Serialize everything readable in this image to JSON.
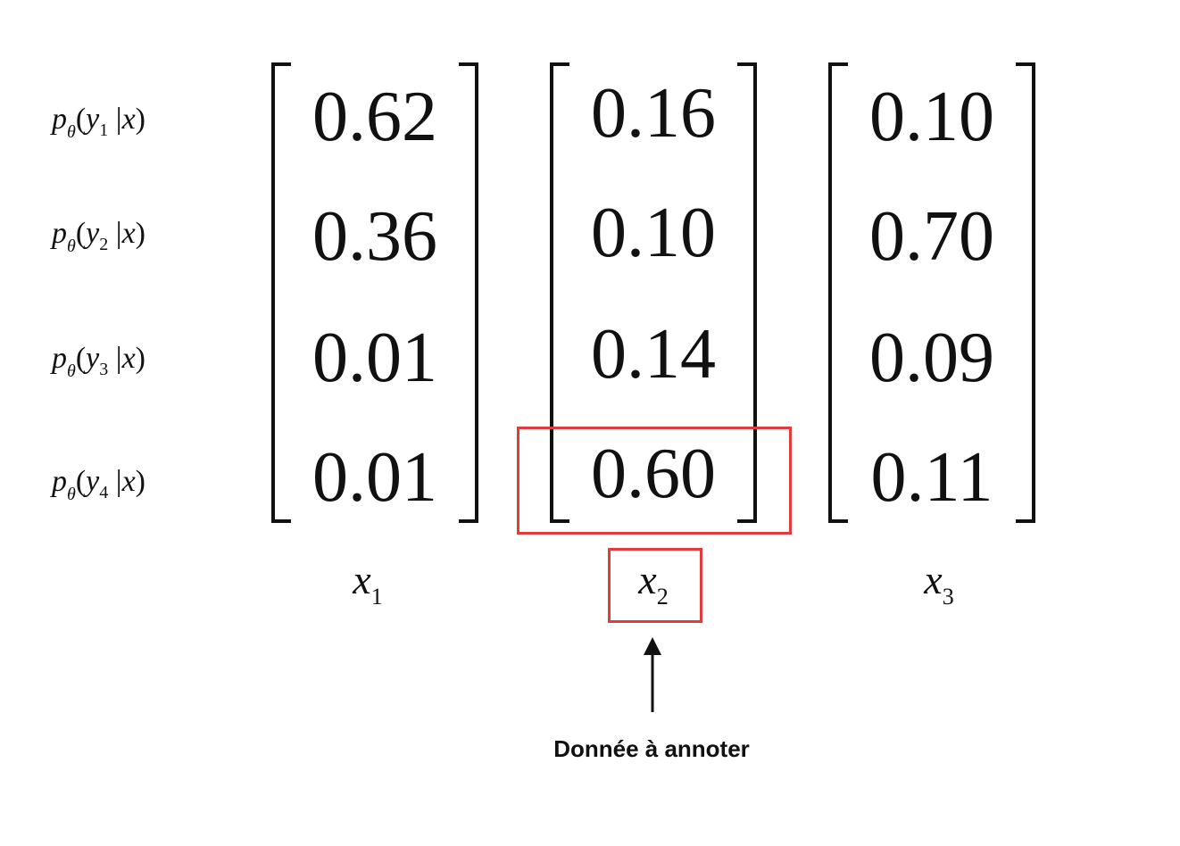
{
  "row_labels": [
    {
      "p": "p",
      "theta": "θ",
      "open": "(",
      "y": "y",
      "index": "1",
      "sep": "|",
      "x": "x",
      "close": ")"
    },
    {
      "p": "p",
      "theta": "θ",
      "open": "(",
      "y": "y",
      "index": "2",
      "sep": "|",
      "x": "x",
      "close": ")"
    },
    {
      "p": "p",
      "theta": "θ",
      "open": "(",
      "y": "y",
      "index": "3",
      "sep": "|",
      "x": "x",
      "close": ")"
    },
    {
      "p": "p",
      "theta": "θ",
      "open": "(",
      "y": "y",
      "index": "4",
      "sep": "|",
      "x": "x",
      "close": ")"
    }
  ],
  "matrices": [
    {
      "values": [
        "0.62",
        "0.36",
        "0.01",
        "0.01"
      ],
      "label": "x",
      "label_index": "1"
    },
    {
      "values": [
        "0.16",
        "0.10",
        "0.14",
        "0.60"
      ],
      "label": "x",
      "label_index": "2"
    },
    {
      "values": [
        "0.10",
        "0.70",
        "0.09",
        "0.11"
      ],
      "label": "x",
      "label_index": "3"
    }
  ],
  "highlight_color": "#e03c3c",
  "caption": "Donnée à annoter"
}
